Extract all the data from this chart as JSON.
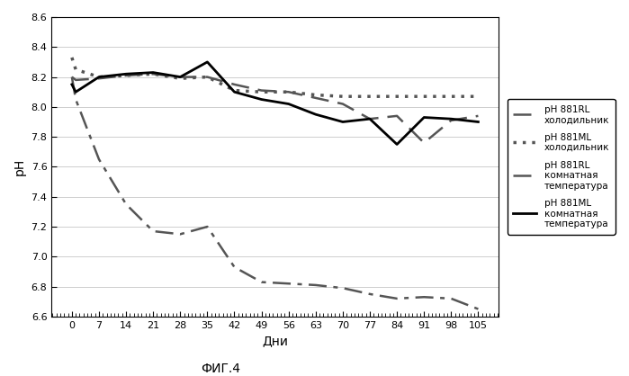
{
  "series": {
    "pH 881RL холодильник": {
      "x": [
        0,
        1,
        7,
        14,
        21,
        28,
        35,
        42,
        49,
        56,
        63,
        70,
        77,
        84,
        91,
        98,
        105
      ],
      "y": [
        8.2,
        8.18,
        8.19,
        8.21,
        8.22,
        8.2,
        8.2,
        8.15,
        8.11,
        8.1,
        8.06,
        8.02,
        7.92,
        7.94,
        7.76,
        7.91,
        7.94
      ],
      "linestyle": "dashed",
      "linewidth": 1.8,
      "color": "#555555",
      "dashes": [
        8,
        4
      ]
    },
    "pH 881ML холодильник": {
      "x": [
        0,
        1,
        7,
        14,
        21,
        28,
        35,
        42,
        49,
        56,
        63,
        70,
        77,
        84,
        91,
        98,
        105
      ],
      "y": [
        8.33,
        8.25,
        8.2,
        8.21,
        8.22,
        8.19,
        8.2,
        8.11,
        8.1,
        8.1,
        8.08,
        8.07,
        8.07,
        8.07,
        8.07,
        8.07,
        8.07
      ],
      "linestyle": "dotted",
      "linewidth": 2.5,
      "color": "#555555",
      "dashes": null
    },
    "pH 881RL комнатная температура": {
      "x": [
        0,
        1,
        7,
        14,
        21,
        28,
        35,
        42,
        49,
        56,
        63,
        70,
        77,
        84,
        91,
        98,
        105
      ],
      "y": [
        8.2,
        8.05,
        7.65,
        7.35,
        7.17,
        7.15,
        7.2,
        6.93,
        6.83,
        6.82,
        6.81,
        6.79,
        6.75,
        6.72,
        6.73,
        6.72,
        6.65
      ],
      "linestyle": "dashdot",
      "linewidth": 1.8,
      "color": "#555555",
      "dashes": [
        10,
        3,
        2,
        3
      ]
    },
    "pH 881ML комнатная температура": {
      "x": [
        0,
        1,
        7,
        14,
        21,
        28,
        35,
        42,
        49,
        56,
        63,
        70,
        77,
        84,
        91,
        98,
        105
      ],
      "y": [
        8.15,
        8.1,
        8.2,
        8.22,
        8.23,
        8.2,
        8.3,
        8.1,
        8.05,
        8.02,
        7.95,
        7.9,
        7.92,
        7.75,
        7.93,
        7.92,
        7.9
      ],
      "linestyle": "solid",
      "linewidth": 2.0,
      "color": "#000000",
      "dashes": null
    }
  },
  "ylabel": "pH",
  "xlabel": "Дни",
  "caption": "ФИГ.4",
  "ylim": [
    6.6,
    8.6
  ],
  "yticks": [
    6.6,
    6.8,
    7.0,
    7.2,
    7.4,
    7.6,
    7.8,
    8.0,
    8.2,
    8.4,
    8.6
  ],
  "xticks": [
    0,
    7,
    14,
    21,
    28,
    35,
    42,
    49,
    56,
    63,
    70,
    77,
    84,
    91,
    98,
    105
  ],
  "legend_labels": [
    "pH 881RL\nхолодильник",
    "pH 881ML\nхолодильник",
    "pH 881RL\nкомнатная\nтемпература",
    "pH 881ML\nкомнатная\nтемпература"
  ],
  "background_color": "#ffffff",
  "grid_color": "#bbbbbb"
}
